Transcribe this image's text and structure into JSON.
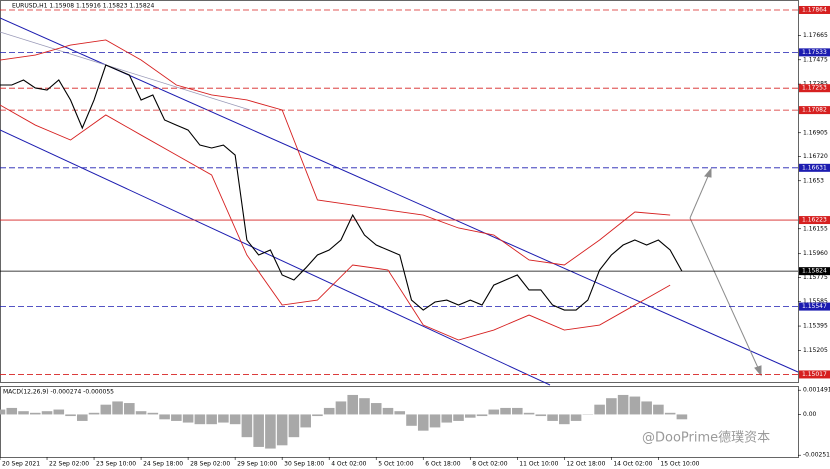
{
  "chart_data": {
    "type": "line",
    "title": "EURUSD,H1 1.15908 1.15916 1.15823 1.15824",
    "watermark": "@DooPrime德璞资本",
    "x": [
      0,
      8,
      16,
      24,
      32,
      40,
      48,
      56,
      64,
      72,
      80,
      88,
      96,
      104,
      112,
      120,
      128,
      136,
      144,
      152,
      160,
      168,
      176,
      184,
      192,
      200,
      208,
      216,
      224,
      232,
      240,
      248,
      256,
      264,
      272,
      280,
      288,
      296,
      304,
      312,
      320,
      328,
      336,
      344,
      352,
      360,
      368,
      376,
      384,
      392,
      400,
      408,
      416,
      424,
      432,
      440,
      448,
      456,
      464
    ],
    "xlim": [
      0,
      543
    ],
    "xticks": [
      {
        "value": 0,
        "label": "20 Sep 2021"
      },
      {
        "value": 32,
        "label": "22 Sep 02:00"
      },
      {
        "value": 64,
        "label": "23 Sep 10:00"
      },
      {
        "value": 96,
        "label": "24 Sep 18:00"
      },
      {
        "value": 128,
        "label": "28 Sep 02:00"
      },
      {
        "value": 160,
        "label": "29 Sep 10:00"
      },
      {
        "value": 192,
        "label": "30 Sep 18:00"
      },
      {
        "value": 224,
        "label": "4 Oct 02:00"
      },
      {
        "value": 256,
        "label": "5 Oct 10:00"
      },
      {
        "value": 288,
        "label": "6 Oct 18:00"
      },
      {
        "value": 320,
        "label": "8 Oct 02:00"
      },
      {
        "value": 352,
        "label": "11 Oct 10:00"
      },
      {
        "value": 384,
        "label": "12 Oct 18:00"
      },
      {
        "value": 416,
        "label": "14 Oct 02:00"
      },
      {
        "value": 448,
        "label": "15 Oct 10:00"
      }
    ],
    "ylim": [
      1.14958,
      1.17942
    ],
    "yticks": [
      1.17665,
      1.17475,
      1.17285,
      1.16905,
      {
        "value": 1.1672,
        "label": "1.16720"
      },
      1.1653,
      1.16155,
      {
        "value": 1.1596,
        "label": "1.15960"
      },
      1.15775,
      1.15585,
      1.15395,
      1.15205
    ],
    "series": [
      {
        "color": "#000000",
        "values": [
          1.17278,
          1.17278,
          1.17317,
          1.17255,
          1.17239,
          1.17317,
          1.17161,
          1.16942,
          1.17161,
          1.17434,
          1.17395,
          1.17356,
          1.17161,
          1.172,
          1.17005,
          1.16965,
          1.16926,
          1.16809,
          1.16786,
          1.16809,
          1.16731,
          1.16067,
          1.1595,
          1.15989,
          1.15794,
          1.15755,
          1.15848,
          1.1595,
          1.15989,
          1.16067,
          1.16262,
          1.16106,
          1.16028,
          1.15989,
          1.1595,
          1.15598,
          1.1552,
          1.15583,
          1.15598,
          1.15559,
          1.15598,
          1.15559,
          1.15715,
          1.15755,
          1.15794,
          1.15677,
          1.15677,
          1.15559,
          1.1552,
          1.1552,
          1.15598,
          1.15833,
          1.1595,
          1.16028,
          1.16067,
          1.16028,
          1.16067,
          1.15989,
          1.15824
        ]
      }
    ],
    "band_x": [
      0,
      24,
      48,
      72,
      96,
      120,
      144,
      168,
      192,
      216,
      240,
      264,
      288,
      312,
      336,
      360,
      384,
      408,
      432,
      456
    ],
    "bands": [
      {
        "color": "#d62020",
        "values": [
          1.17473,
          1.17512,
          1.1759,
          1.1763,
          1.17473,
          1.17278,
          1.172,
          1.17161,
          1.17083,
          1.1638,
          1.1634,
          1.16301,
          1.16262,
          1.16161,
          1.16106,
          1.15911,
          1.15872,
          1.16067,
          1.16286,
          1.16262
        ]
      },
      {
        "color": "#d62020",
        "values": [
          1.17122,
          1.16965,
          1.16848,
          1.17044,
          1.16887,
          1.16731,
          1.16575,
          1.1595,
          1.15559,
          1.15598,
          1.15872,
          1.15833,
          1.15403,
          1.15286,
          1.15364,
          1.15481,
          1.15364,
          1.15403,
          1.15559,
          1.15715
        ]
      }
    ],
    "levels": [
      {
        "value": 1.17864,
        "color": "#d62020",
        "dash": true
      },
      {
        "value": 1.17533,
        "color": "#1c1cb0",
        "dash": true
      },
      {
        "value": 1.17253,
        "color": "#d62020",
        "dash": true
      },
      {
        "value": 1.17082,
        "color": "#d62020",
        "dash": true
      },
      {
        "value": 1.16631,
        "color": "#1c1cb0",
        "dash": true
      },
      {
        "value": 1.16223,
        "color": "#d62020",
        "dash": false
      },
      {
        "value": 1.15824,
        "color": "#000000",
        "dash": false
      },
      {
        "value": 1.15547,
        "color": "#1c1cb0",
        "dash": true
      },
      {
        "value": 1.15017,
        "color": "#d62020",
        "dash": true
      }
    ],
    "macd": {
      "label": "MACD(12,26,9) -0.000274 -0.000055",
      "color": "#a8a8a8",
      "ylim": [
        -0.00262,
        0.00175
      ],
      "yticks": [
        0.001491,
        {
          "value": 0,
          "label": "0.00"
        },
        -0.00251
      ],
      "values": [
        0.0003,
        0.0004,
        0.0002,
        0.0001,
        0.0002,
        0.0003,
        -0.0001,
        -0.0004,
        0.0001,
        0.0006,
        0.0008,
        0.0007,
        0.0002,
        0.0001,
        -0.0003,
        -0.0004,
        -0.0005,
        -0.0006,
        -0.0006,
        -0.0005,
        -0.0006,
        -0.0014,
        -0.002,
        -0.0021,
        -0.0019,
        -0.0014,
        -0.0008,
        -0.0001,
        0.0004,
        0.0008,
        0.0012,
        0.001,
        0.0007,
        0.0004,
        0.0002,
        -0.0007,
        -0.001,
        -0.0008,
        -0.0005,
        -0.0004,
        -0.0002,
        -0.0001,
        0.0003,
        0.0004,
        0.0004,
        0.0001,
        -0.0001,
        -0.0004,
        -0.0006,
        -0.0004,
        0,
        0.0006,
        0.001,
        0.0012,
        0.0011,
        0.0008,
        0.0006,
        0.0001,
        -0.0003
      ]
    }
  }
}
